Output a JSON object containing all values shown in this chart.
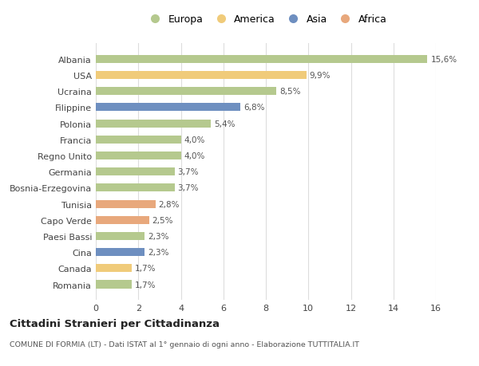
{
  "categories": [
    "Albania",
    "USA",
    "Ucraina",
    "Filippine",
    "Polonia",
    "Francia",
    "Regno Unito",
    "Germania",
    "Bosnia-Erzegovina",
    "Tunisia",
    "Capo Verde",
    "Paesi Bassi",
    "Cina",
    "Canada",
    "Romania"
  ],
  "values": [
    15.6,
    9.9,
    8.5,
    6.8,
    5.4,
    4.0,
    4.0,
    3.7,
    3.7,
    2.8,
    2.5,
    2.3,
    2.3,
    1.7,
    1.7
  ],
  "labels": [
    "15,6%",
    "9,9%",
    "8,5%",
    "6,8%",
    "5,4%",
    "4,0%",
    "4,0%",
    "3,7%",
    "3,7%",
    "2,8%",
    "2,5%",
    "2,3%",
    "2,3%",
    "1,7%",
    "1,7%"
  ],
  "colors": [
    "#b5c98e",
    "#f0cb7a",
    "#b5c98e",
    "#6e8fc0",
    "#b5c98e",
    "#b5c98e",
    "#b5c98e",
    "#b5c98e",
    "#b5c98e",
    "#e8a87c",
    "#e8a87c",
    "#b5c98e",
    "#6e8fc0",
    "#f0cb7a",
    "#b5c98e"
  ],
  "legend_labels": [
    "Europa",
    "America",
    "Asia",
    "Africa"
  ],
  "legend_colors": [
    "#b5c98e",
    "#f0cb7a",
    "#6e8fc0",
    "#e8a87c"
  ],
  "title": "Cittadini Stranieri per Cittadinanza",
  "subtitle": "COMUNE DI FORMIA (LT) - Dati ISTAT al 1° gennaio di ogni anno - Elaborazione TUTTITALIA.IT",
  "xlim": [
    0,
    16
  ],
  "xticks": [
    0,
    2,
    4,
    6,
    8,
    10,
    12,
    14,
    16
  ],
  "background_color": "#ffffff",
  "grid_color": "#dddddd",
  "bar_height": 0.5
}
